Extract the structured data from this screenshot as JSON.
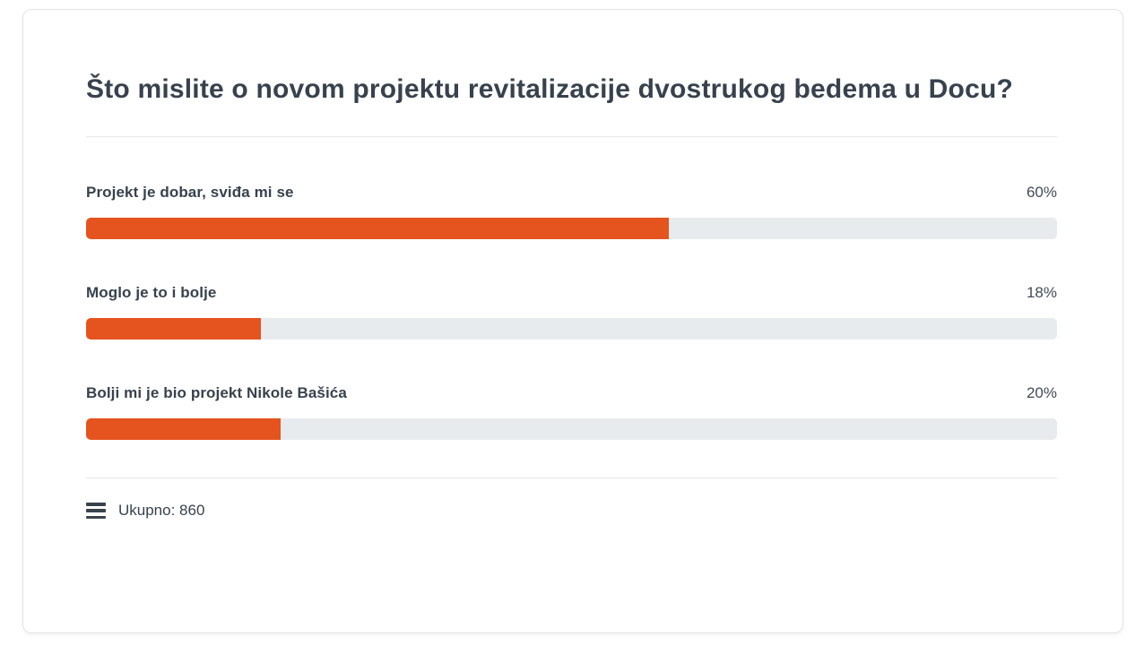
{
  "chart_data": {
    "type": "bar",
    "orientation": "horizontal",
    "title": "Što mislite o novom projektu revitalizacije dvostrukog bedema u Docu?",
    "categories": [
      "Projekt je dobar, sviđa mi se",
      "Moglo je to i bolje",
      "Bolji mi je bio projekt Nikole Bašića"
    ],
    "values": [
      60,
      18,
      20
    ],
    "value_labels": [
      "60%",
      "18%",
      "20%"
    ],
    "unit": "%",
    "xlim": [
      0,
      100
    ],
    "grid": "off",
    "total_label": "Ukupno: 860",
    "total_votes": 860
  },
  "poll": {
    "question": "Što mislite o novom projektu revitalizacije dvostrukog bedema u Docu?",
    "options": [
      {
        "label": "Projekt je dobar, sviđa mi se",
        "percent_label": "60%",
        "percent": 60
      },
      {
        "label": "Moglo je to i bolje",
        "percent_label": "18%",
        "percent": 18
      },
      {
        "label": "Bolji mi je bio projekt Nikole Bašića",
        "percent_label": "20%",
        "percent": 20
      }
    ],
    "footer": {
      "icon": "list-icon",
      "total_label": "Ukupno: 860"
    }
  },
  "colors": {
    "bar_fill": "#e5531f",
    "bar_track": "#e8ebed",
    "text": "#37424d",
    "percent_text": "#414c57",
    "divider": "#e9e9e9",
    "card_border": "#e4e4e4",
    "background": "#ffffff"
  }
}
